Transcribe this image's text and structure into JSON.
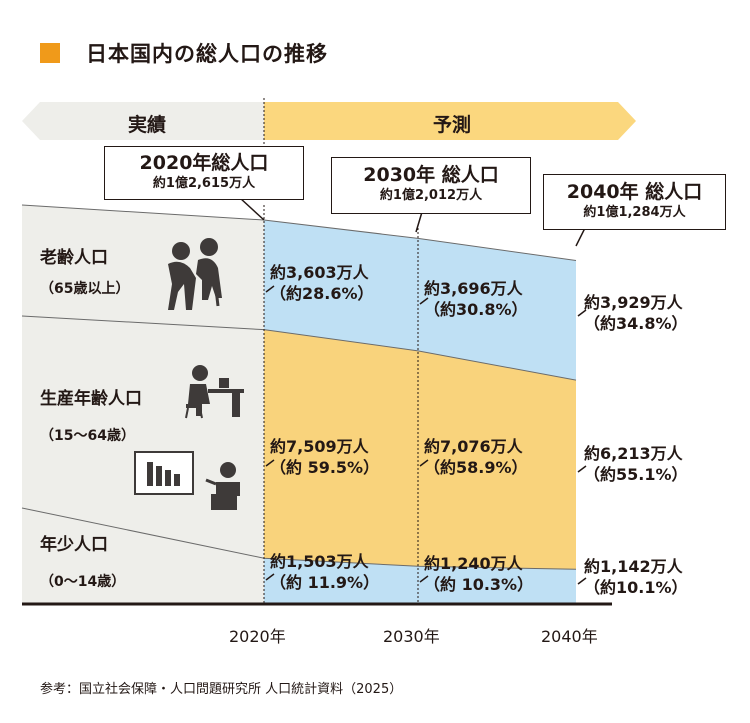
{
  "title": "日本国内の総人口の推移",
  "banner": {
    "actual": "実績",
    "forecast": "予測"
  },
  "colors": {
    "accent": "#f09a1a",
    "elderly": "#bfe0f4",
    "working": "#f9d37c",
    "youth": "#bfe0f4",
    "actual_bg": "#eeeeea",
    "forecast_banner": "#fbd77e"
  },
  "callouts": [
    {
      "title": "2020年総人口",
      "value": "約1億2,615万人"
    },
    {
      "title": "2030年 総人口",
      "value": "約1億2,012万人"
    },
    {
      "title": "2040年 総人口",
      "value": "約1億1,284万人"
    }
  ],
  "categories": [
    {
      "name": "老齢人口",
      "sub": "（65歳以上）"
    },
    {
      "name": "生産年齢人口",
      "sub": "（15〜64歳）"
    },
    {
      "name": "年少人口",
      "sub": "（0〜14歳）"
    }
  ],
  "labels": {
    "elderly": [
      {
        "v": "約3,603万人",
        "p": "（約28.6%）"
      },
      {
        "v": "約3,696万人",
        "p": "（約30.8%）"
      },
      {
        "v": "約3,929万人",
        "p": "（約34.8%）"
      }
    ],
    "working": [
      {
        "v": "約7,509万人",
        "p": "（約 59.5%）"
      },
      {
        "v": "約7,076万人",
        "p": "（約58.9%）"
      },
      {
        "v": "約6,213万人",
        "p": "（約55.1%）"
      }
    ],
    "youth": [
      {
        "v": "約1,503万人",
        "p": "（約 11.9%）"
      },
      {
        "v": "約1,240万人",
        "p": "（約 10.3%）"
      },
      {
        "v": "約1,142万人",
        "p": "（約10.1%）"
      }
    ]
  },
  "source": "参考：国立社会保障・人口問題研究所 人口統計資料（2025）",
  "chart_data": {
    "type": "area",
    "x": [
      "2020年",
      "2030年",
      "2040年"
    ],
    "series": [
      {
        "name": "年少人口",
        "values": [
          1503,
          1240,
          1142
        ],
        "share": [
          11.9,
          10.3,
          10.1
        ]
      },
      {
        "name": "生産年齢人口",
        "values": [
          7509,
          7076,
          6213
        ],
        "share": [
          59.5,
          58.9,
          55.1
        ]
      },
      {
        "name": "老齢人口",
        "values": [
          3603,
          3696,
          3929
        ],
        "share": [
          28.6,
          30.8,
          34.8
        ]
      }
    ],
    "totals": [
      12615,
      12012,
      11284
    ]
  }
}
